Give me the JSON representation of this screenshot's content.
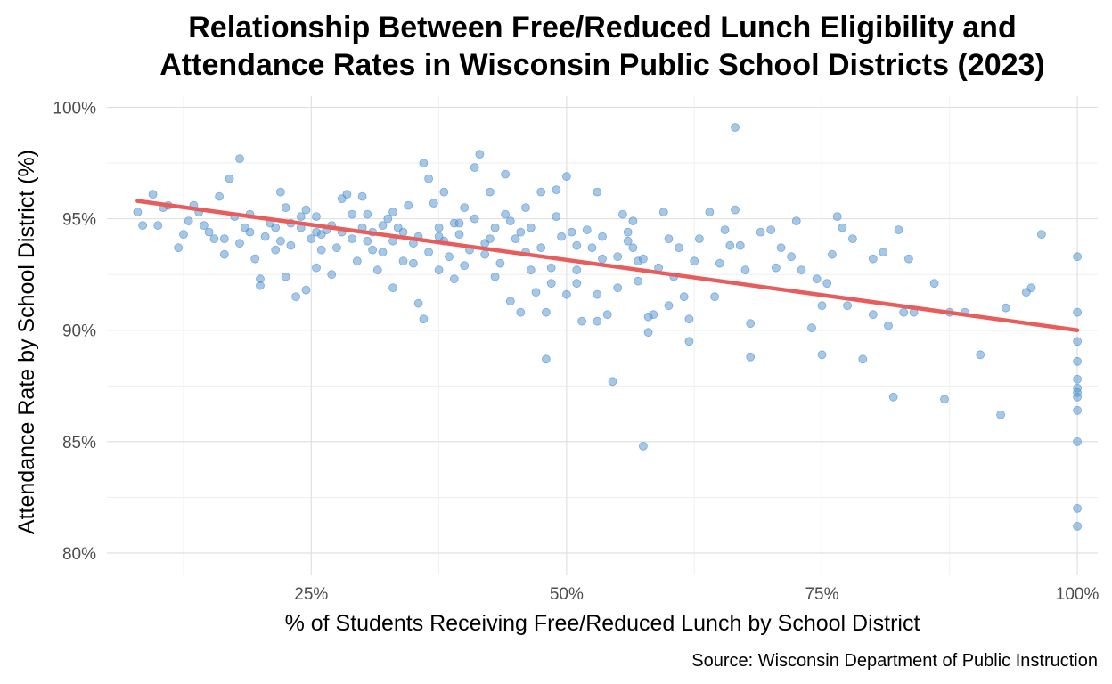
{
  "chart_data": {
    "type": "scatter",
    "title_line1": "Relationship Between Free/Reduced Lunch Eligibility and",
    "title_line2": "Attendance Rates in Wisconsin Public School Districts (2023)",
    "xlabel": "% of Students Receiving Free/Reduced Lunch by School District",
    "ylabel": "Attendance Rate by School District (%)",
    "caption": "Source: Wisconsin Department of Public Instruction",
    "xlim": [
      0.05,
      1.02
    ],
    "ylim": [
      0.79,
      1.005
    ],
    "x_ticks": [
      {
        "value": 0.25,
        "label": "25%"
      },
      {
        "value": 0.5,
        "label": "50%"
      },
      {
        "value": 0.75,
        "label": "75%"
      },
      {
        "value": 1.0,
        "label": "100%"
      }
    ],
    "y_ticks": [
      {
        "value": 0.8,
        "label": "80%"
      },
      {
        "value": 0.85,
        "label": "85%"
      },
      {
        "value": 0.9,
        "label": "90%"
      },
      {
        "value": 0.95,
        "label": "95%"
      },
      {
        "value": 1.0,
        "label": "100%"
      }
    ],
    "grid": true,
    "point_color": "#5b9bd5",
    "trend_color": "#e85c5c",
    "trend_line": {
      "x": [
        0.08,
        1.0
      ],
      "y": [
        0.958,
        0.9
      ]
    },
    "points": [
      [
        0.08,
        0.953
      ],
      [
        0.085,
        0.947
      ],
      [
        0.095,
        0.961
      ],
      [
        0.1,
        0.947
      ],
      [
        0.105,
        0.955
      ],
      [
        0.11,
        0.956
      ],
      [
        0.12,
        0.937
      ],
      [
        0.125,
        0.943
      ],
      [
        0.13,
        0.949
      ],
      [
        0.135,
        0.956
      ],
      [
        0.14,
        0.953
      ],
      [
        0.145,
        0.947
      ],
      [
        0.15,
        0.944
      ],
      [
        0.155,
        0.941
      ],
      [
        0.16,
        0.96
      ],
      [
        0.165,
        0.941
      ],
      [
        0.165,
        0.934
      ],
      [
        0.17,
        0.968
      ],
      [
        0.175,
        0.951
      ],
      [
        0.18,
        0.939
      ],
      [
        0.18,
        0.977
      ],
      [
        0.185,
        0.946
      ],
      [
        0.19,
        0.944
      ],
      [
        0.19,
        0.952
      ],
      [
        0.195,
        0.932
      ],
      [
        0.2,
        0.923
      ],
      [
        0.2,
        0.92
      ],
      [
        0.205,
        0.942
      ],
      [
        0.21,
        0.948
      ],
      [
        0.215,
        0.946
      ],
      [
        0.22,
        0.94
      ],
      [
        0.22,
        0.962
      ],
      [
        0.225,
        0.955
      ],
      [
        0.225,
        0.924
      ],
      [
        0.23,
        0.948
      ],
      [
        0.23,
        0.938
      ],
      [
        0.235,
        0.915
      ],
      [
        0.24,
        0.951
      ],
      [
        0.24,
        0.946
      ],
      [
        0.245,
        0.954
      ],
      [
        0.245,
        0.918
      ],
      [
        0.25,
        0.941
      ],
      [
        0.255,
        0.951
      ],
      [
        0.255,
        0.928
      ],
      [
        0.26,
        0.936
      ],
      [
        0.26,
        0.943
      ],
      [
        0.265,
        0.945
      ],
      [
        0.27,
        0.925
      ],
      [
        0.275,
        0.937
      ],
      [
        0.28,
        0.944
      ],
      [
        0.28,
        0.959
      ],
      [
        0.285,
        0.961
      ],
      [
        0.29,
        0.952
      ],
      [
        0.29,
        0.941
      ],
      [
        0.295,
        0.931
      ],
      [
        0.3,
        0.96
      ],
      [
        0.3,
        0.946
      ],
      [
        0.305,
        0.952
      ],
      [
        0.31,
        0.936
      ],
      [
        0.31,
        0.944
      ],
      [
        0.315,
        0.927
      ],
      [
        0.32,
        0.947
      ],
      [
        0.32,
        0.935
      ],
      [
        0.325,
        0.95
      ],
      [
        0.33,
        0.94
      ],
      [
        0.33,
        0.919
      ],
      [
        0.335,
        0.946
      ],
      [
        0.34,
        0.944
      ],
      [
        0.345,
        0.956
      ],
      [
        0.35,
        0.939
      ],
      [
        0.35,
        0.93
      ],
      [
        0.355,
        0.912
      ],
      [
        0.355,
        0.942
      ],
      [
        0.36,
        0.905
      ],
      [
        0.36,
        0.975
      ],
      [
        0.365,
        0.968
      ],
      [
        0.365,
        0.935
      ],
      [
        0.37,
        0.957
      ],
      [
        0.375,
        0.946
      ],
      [
        0.375,
        0.927
      ],
      [
        0.38,
        0.962
      ],
      [
        0.38,
        0.94
      ],
      [
        0.385,
        0.933
      ],
      [
        0.39,
        0.948
      ],
      [
        0.39,
        0.923
      ],
      [
        0.395,
        0.943
      ],
      [
        0.4,
        0.955
      ],
      [
        0.4,
        0.929
      ],
      [
        0.405,
        0.936
      ],
      [
        0.41,
        0.95
      ],
      [
        0.41,
        0.973
      ],
      [
        0.415,
        0.979
      ],
      [
        0.42,
        0.939
      ],
      [
        0.42,
        0.934
      ],
      [
        0.425,
        0.962
      ],
      [
        0.43,
        0.946
      ],
      [
        0.43,
        0.924
      ],
      [
        0.435,
        0.93
      ],
      [
        0.44,
        0.97
      ],
      [
        0.445,
        0.949
      ],
      [
        0.445,
        0.913
      ],
      [
        0.45,
        0.941
      ],
      [
        0.455,
        0.908
      ],
      [
        0.46,
        0.955
      ],
      [
        0.46,
        0.935
      ],
      [
        0.465,
        0.946
      ],
      [
        0.47,
        0.917
      ],
      [
        0.475,
        0.962
      ],
      [
        0.475,
        0.937
      ],
      [
        0.48,
        0.887
      ],
      [
        0.48,
        0.908
      ],
      [
        0.485,
        0.928
      ],
      [
        0.49,
        0.951
      ],
      [
        0.49,
        0.963
      ],
      [
        0.495,
        0.942
      ],
      [
        0.5,
        0.916
      ],
      [
        0.5,
        0.969
      ],
      [
        0.505,
        0.944
      ],
      [
        0.51,
        0.927
      ],
      [
        0.515,
        0.904
      ],
      [
        0.52,
        0.945
      ],
      [
        0.525,
        0.937
      ],
      [
        0.53,
        0.904
      ],
      [
        0.53,
        0.962
      ],
      [
        0.535,
        0.932
      ],
      [
        0.54,
        0.907
      ],
      [
        0.545,
        0.877
      ],
      [
        0.55,
        0.933
      ],
      [
        0.55,
        0.919
      ],
      [
        0.555,
        0.952
      ],
      [
        0.56,
        0.944
      ],
      [
        0.565,
        0.937
      ],
      [
        0.565,
        0.949
      ],
      [
        0.57,
        0.931
      ],
      [
        0.575,
        0.932
      ],
      [
        0.575,
        0.848
      ],
      [
        0.58,
        0.906
      ],
      [
        0.58,
        0.899
      ],
      [
        0.585,
        0.907
      ],
      [
        0.59,
        0.928
      ],
      [
        0.595,
        0.953
      ],
      [
        0.6,
        0.911
      ],
      [
        0.605,
        0.924
      ],
      [
        0.61,
        0.937
      ],
      [
        0.615,
        0.915
      ],
      [
        0.62,
        0.905
      ],
      [
        0.62,
        0.895
      ],
      [
        0.625,
        0.931
      ],
      [
        0.63,
        0.941
      ],
      [
        0.64,
        0.953
      ],
      [
        0.645,
        0.915
      ],
      [
        0.65,
        0.93
      ],
      [
        0.655,
        0.945
      ],
      [
        0.66,
        0.938
      ],
      [
        0.665,
        0.954
      ],
      [
        0.665,
        0.991
      ],
      [
        0.67,
        0.938
      ],
      [
        0.675,
        0.927
      ],
      [
        0.68,
        0.903
      ],
      [
        0.68,
        0.888
      ],
      [
        0.69,
        0.944
      ],
      [
        0.7,
        0.945
      ],
      [
        0.705,
        0.928
      ],
      [
        0.71,
        0.937
      ],
      [
        0.72,
        0.933
      ],
      [
        0.725,
        0.949
      ],
      [
        0.73,
        0.927
      ],
      [
        0.74,
        0.901
      ],
      [
        0.745,
        0.923
      ],
      [
        0.75,
        0.911
      ],
      [
        0.75,
        0.889
      ],
      [
        0.755,
        0.921
      ],
      [
        0.76,
        0.934
      ],
      [
        0.765,
        0.951
      ],
      [
        0.77,
        0.946
      ],
      [
        0.775,
        0.911
      ],
      [
        0.78,
        0.941
      ],
      [
        0.79,
        0.887
      ],
      [
        0.8,
        0.907
      ],
      [
        0.8,
        0.932
      ],
      [
        0.81,
        0.935
      ],
      [
        0.815,
        0.902
      ],
      [
        0.82,
        0.87
      ],
      [
        0.825,
        0.945
      ],
      [
        0.83,
        0.908
      ],
      [
        0.835,
        0.932
      ],
      [
        0.84,
        0.908
      ],
      [
        0.86,
        0.921
      ],
      [
        0.87,
        0.869
      ],
      [
        0.875,
        0.908
      ],
      [
        0.89,
        0.908
      ],
      [
        0.905,
        0.889
      ],
      [
        0.925,
        0.862
      ],
      [
        0.93,
        0.91
      ],
      [
        0.95,
        0.917
      ],
      [
        0.955,
        0.919
      ],
      [
        0.965,
        0.943
      ],
      [
        1.0,
        0.933
      ],
      [
        1.0,
        0.908
      ],
      [
        1.0,
        0.895
      ],
      [
        1.0,
        0.886
      ],
      [
        1.0,
        0.878
      ],
      [
        1.0,
        0.874
      ],
      [
        1.0,
        0.872
      ],
      [
        1.0,
        0.87
      ],
      [
        1.0,
        0.864
      ],
      [
        1.0,
        0.85
      ],
      [
        1.0,
        0.82
      ],
      [
        1.0,
        0.812
      ],
      [
        0.27,
        0.947
      ],
      [
        0.33,
        0.953
      ],
      [
        0.34,
        0.931
      ],
      [
        0.44,
        0.952
      ],
      [
        0.51,
        0.921
      ],
      [
        0.53,
        0.916
      ],
      [
        0.56,
        0.94
      ],
      [
        0.6,
        0.941
      ],
      [
        0.215,
        0.936
      ],
      [
        0.255,
        0.944
      ],
      [
        0.395,
        0.948
      ],
      [
        0.425,
        0.941
      ],
      [
        0.455,
        0.944
      ],
      [
        0.465,
        0.927
      ],
      [
        0.485,
        0.921
      ],
      [
        0.51,
        0.938
      ],
      [
        0.535,
        0.942
      ],
      [
        0.57,
        0.922
      ],
      [
        0.305,
        0.94
      ],
      [
        0.375,
        0.942
      ]
    ]
  }
}
